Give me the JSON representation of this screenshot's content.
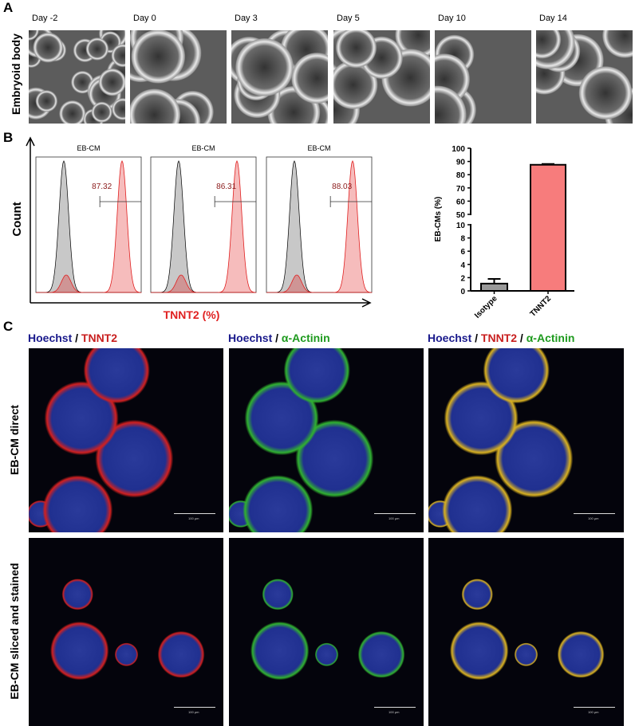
{
  "panel_a": {
    "label": "A",
    "row_label": "Embryoid body",
    "days": [
      "Day -2",
      "Day 0",
      "Day 3",
      "Day 5",
      "Day 10",
      "Day 14"
    ]
  },
  "panel_b": {
    "label": "B",
    "flow": {
      "titles": [
        "EB-CM",
        "EB-CM",
        "EB-CM"
      ],
      "gate_values": [
        "87.32",
        "86.31",
        "88.03"
      ],
      "ylabel": "Count",
      "xlabel": "TNNT2 (%)",
      "isotype_color": "#c8c8c8",
      "tnnt2_color": "#e02020"
    },
    "chart_data": {
      "type": "bar",
      "categories": [
        "Isotype",
        "TNNT2"
      ],
      "values": [
        1.1,
        87.5
      ],
      "errors": [
        0.7,
        0.6
      ],
      "colors": [
        "#999999",
        "#f77c7c"
      ],
      "ylabel": "EB-CMs (%)",
      "axis_break": [
        10,
        50
      ],
      "lower_ticks": [
        "0",
        "2",
        "4",
        "6",
        "8",
        "10"
      ],
      "upper_ticks": [
        "50",
        "60",
        "70",
        "80",
        "90",
        "100"
      ]
    }
  },
  "panel_c": {
    "label": "C",
    "columns": [
      {
        "parts": [
          {
            "t": "Hoechst",
            "c": "#1a1a8c"
          },
          {
            "t": " / ",
            "c": "#000"
          },
          {
            "t": "TNNT2",
            "c": "#c81e1e"
          }
        ]
      },
      {
        "parts": [
          {
            "t": "Hoechst",
            "c": "#1a1a8c"
          },
          {
            "t": " / ",
            "c": "#000"
          },
          {
            "t": "α-Actinin",
            "c": "#1e9a1e"
          }
        ]
      },
      {
        "parts": [
          {
            "t": "Hoechst",
            "c": "#1a1a8c"
          },
          {
            "t": " / ",
            "c": "#000"
          },
          {
            "t": "TNNT2",
            "c": "#c81e1e"
          },
          {
            "t": " / ",
            "c": "#000"
          },
          {
            "t": "α-Actinin",
            "c": "#1e9a1e"
          }
        ]
      }
    ],
    "rows": [
      "EB-CM direct",
      "EB-CM sliced and stained"
    ],
    "scale_bar": "100 μm"
  }
}
